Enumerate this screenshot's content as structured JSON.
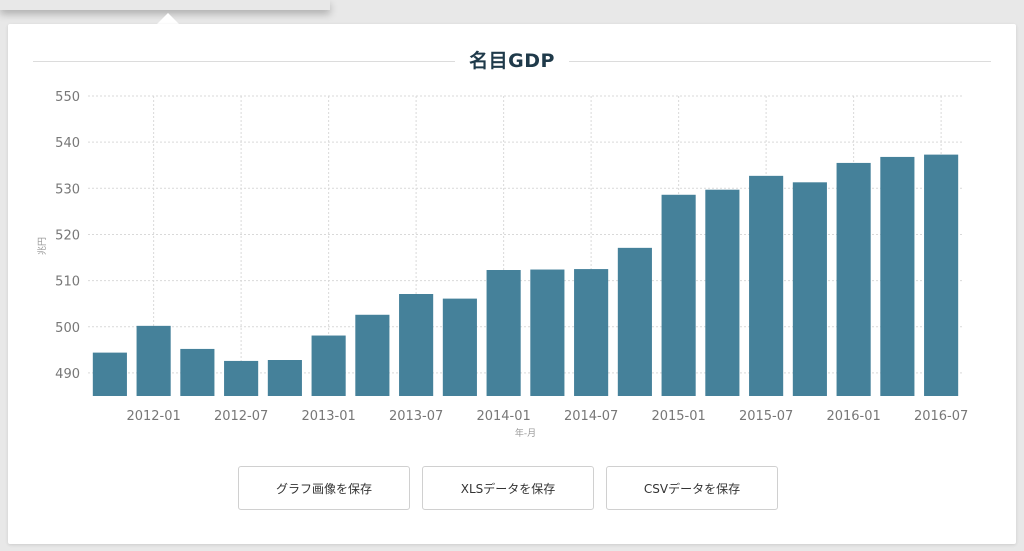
{
  "chart_title": "名目GDP",
  "buttons": {
    "save_image": "グラフ画像を保存",
    "save_xls": "XLSデータを保存",
    "save_csv": "CSVデータを保存"
  },
  "colors": {
    "bar": "#45819a",
    "grid": "#d9d9d9",
    "tick_text": "#777777"
  },
  "chart_data": {
    "type": "bar",
    "title": "名目GDP",
    "xlabel": "年-月",
    "ylabel": "兆円",
    "ylim": [
      485,
      550
    ],
    "yticks": [
      490,
      500,
      510,
      520,
      530,
      540,
      550
    ],
    "grid": true,
    "legend": "none",
    "categories": [
      "2011-10",
      "2012-01",
      "2012-04",
      "2012-07",
      "2012-10",
      "2013-01",
      "2013-04",
      "2013-07",
      "2013-10",
      "2014-01",
      "2014-04",
      "2014-07",
      "2014-10",
      "2015-01",
      "2015-04",
      "2015-07",
      "2015-10",
      "2016-01",
      "2016-04",
      "2016-07"
    ],
    "tick_labels": [
      "2012-01",
      "2012-07",
      "2013-01",
      "2013-07",
      "2014-01",
      "2014-07",
      "2015-01",
      "2015-07",
      "2016-01",
      "2016-07"
    ],
    "values": [
      494.4,
      500.2,
      495.2,
      492.6,
      492.8,
      498.1,
      502.6,
      507.1,
      506.1,
      512.3,
      512.4,
      512.5,
      517.1,
      528.6,
      529.7,
      532.7,
      531.3,
      535.5,
      536.8,
      537.3
    ]
  }
}
